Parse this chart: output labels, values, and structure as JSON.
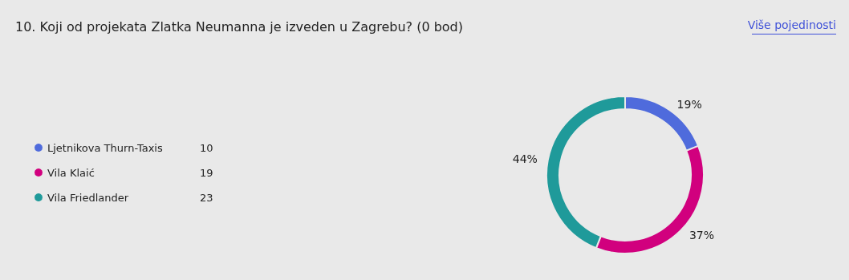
{
  "chart_data": {
    "type": "donut",
    "title": "10. Koji od projekata Zlatka Neumanna je izveden u Zagrebu? (0 bod)",
    "annotations": [
      "Više pojedinosti",
      {
        "text": "10",
        "x": "Ljetnikova Thurn-Taxis"
      },
      {
        "text": "19",
        "x": "Vila Klaić"
      },
      {
        "text": "23",
        "x": "Vila Friedlander"
      }
    ],
    "categories": [
      "Ljetnikova Thurn-Taxis",
      "Vila Klaić",
      "Vila Friedlander"
    ],
    "values": [
      19,
      37,
      44
    ],
    "value_labels": [
      "19%",
      "37%",
      "44%"
    ],
    "colors": [
      "#4f6bdc",
      "#d1007e",
      "#1f9a9a"
    ],
    "legend": "left"
  }
}
